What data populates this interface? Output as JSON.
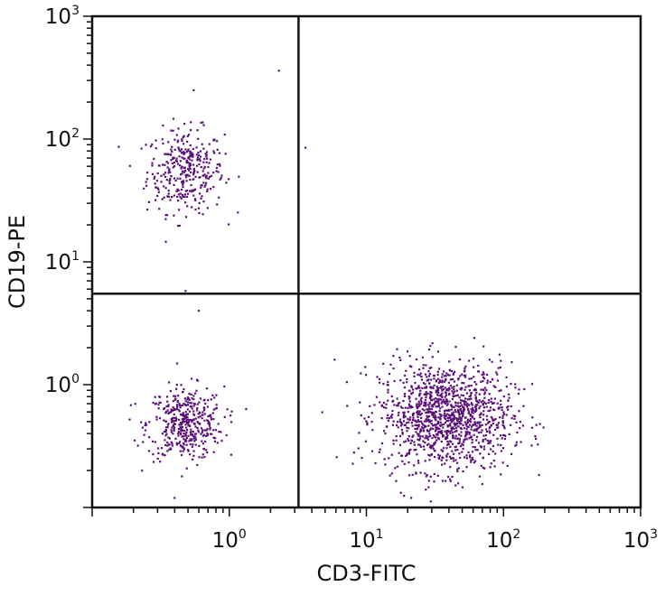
{
  "chart_data": {
    "type": "scatter",
    "title": "",
    "xlabel": "CD3-FITC",
    "ylabel": "CD19-PE",
    "x_scale": "log",
    "y_scale": "log",
    "xlim": [
      0.1,
      1000
    ],
    "ylim": [
      0.1,
      1000
    ],
    "x_ticks": [
      {
        "base": "10",
        "exp": "0",
        "value": 1
      },
      {
        "base": "10",
        "exp": "1",
        "value": 10
      },
      {
        "base": "10",
        "exp": "2",
        "value": 100
      },
      {
        "base": "10",
        "exp": "3",
        "value": 1000
      }
    ],
    "y_ticks": [
      {
        "base": "10",
        "exp": "0",
        "value": 1
      },
      {
        "base": "10",
        "exp": "1",
        "value": 10
      },
      {
        "base": "10",
        "exp": "2",
        "value": 100
      },
      {
        "base": "10",
        "exp": "3",
        "value": 1000
      }
    ],
    "quadrant_gates": {
      "x": 3.2,
      "y": 5.5
    },
    "grid": false,
    "point_color": "#5a1078",
    "clusters": [
      {
        "name": "",
        "center_x": 0.48,
        "center_y": 55,
        "points": 340,
        "spread_x_log": 0.14,
        "spread_y_log": 0.17
      },
      {
        "name": "",
        "center_x": 0.48,
        "center_y": 0.48,
        "points": 420,
        "spread_x_log": 0.14,
        "spread_y_log": 0.15
      },
      {
        "name": "",
        "center_x": 38,
        "center_y": 0.55,
        "points": 1250,
        "spread_x_log": 0.24,
        "spread_y_log": 0.22
      }
    ],
    "outliers": [
      {
        "x": 2.3,
        "y": 360
      },
      {
        "x": 3.6,
        "y": 85
      },
      {
        "x": 0.55,
        "y": 250
      },
      {
        "x": 0.48,
        "y": 5.8
      },
      {
        "x": 0.6,
        "y": 4.0
      }
    ]
  }
}
